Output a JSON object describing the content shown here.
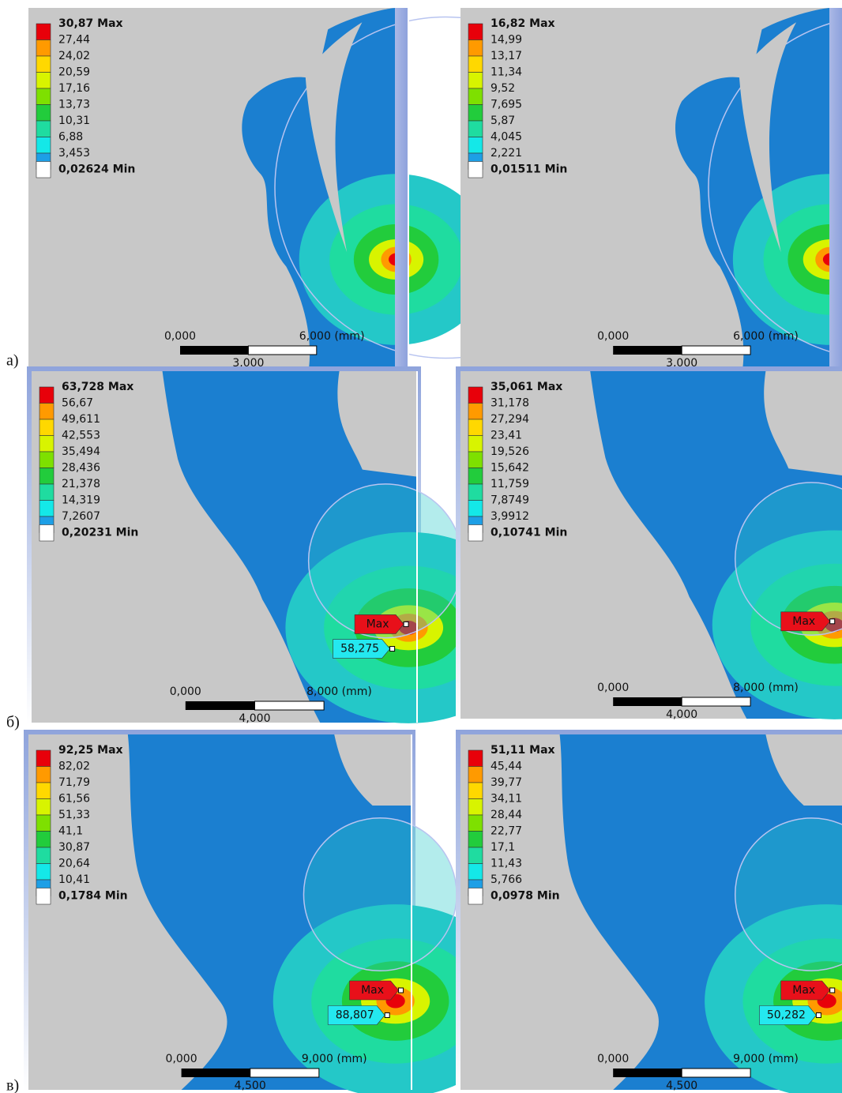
{
  "rows": [
    {
      "label": "а)",
      "panels": [
        {
          "legend": [
            "30,87 Max",
            "27,44",
            "24,02",
            "20,59",
            "17,16",
            "13,73",
            "10,31",
            "6,88",
            "3,453",
            "0,02624 Min"
          ],
          "scale": [
            "0,000",
            "6,000 (mm)",
            "3,000"
          ],
          "probes": []
        },
        {
          "legend": [
            "16,82 Max",
            "14,99",
            "13,17",
            "11,34",
            "9,52",
            "7,695",
            "5,87",
            "4,045",
            "2,221",
            "0,01511 Min"
          ],
          "scale": [
            "0,000",
            "6,000 (mm)",
            "3,000"
          ],
          "probes": []
        }
      ]
    },
    {
      "label": "б)",
      "panels": [
        {
          "legend": [
            "63,728 Max",
            "56,67",
            "49,611",
            "42,553",
            "35,494",
            "28,436",
            "21,378",
            "14,319",
            "7,2607",
            "0,20231 Min"
          ],
          "scale": [
            "0,000",
            "8,000 (mm)",
            "4,000"
          ],
          "probes": [
            "Max",
            "58,275"
          ]
        },
        {
          "legend": [
            "35,061 Max",
            "31,178",
            "27,294",
            "23,41",
            "19,526",
            "15,642",
            "11,759",
            "7,8749",
            "3,9912",
            "0,10741 Min"
          ],
          "scale": [
            "0,000",
            "8,000 (mm)",
            "4,000"
          ],
          "probes": [
            "Max"
          ]
        }
      ]
    },
    {
      "label": "в)",
      "panels": [
        {
          "legend": [
            "92,25 Max",
            "82,02",
            "71,79",
            "61,56",
            "51,33",
            "41,1",
            "30,87",
            "20,64",
            "10,41",
            "0,1784 Min"
          ],
          "scale": [
            "0,000",
            "9,000 (mm)",
            "4,500"
          ],
          "probes": [
            "Max",
            "88,807"
          ]
        },
        {
          "legend": [
            "51,11 Max",
            "45,44",
            "39,77",
            "34,11",
            "28,44",
            "22,77",
            "17,1",
            "11,43",
            "5,766",
            "0,0978 Min"
          ],
          "scale": [
            "0,000",
            "9,000 (mm)",
            "4,500"
          ],
          "probes": [
            "Max",
            "50,282"
          ]
        }
      ]
    }
  ]
}
